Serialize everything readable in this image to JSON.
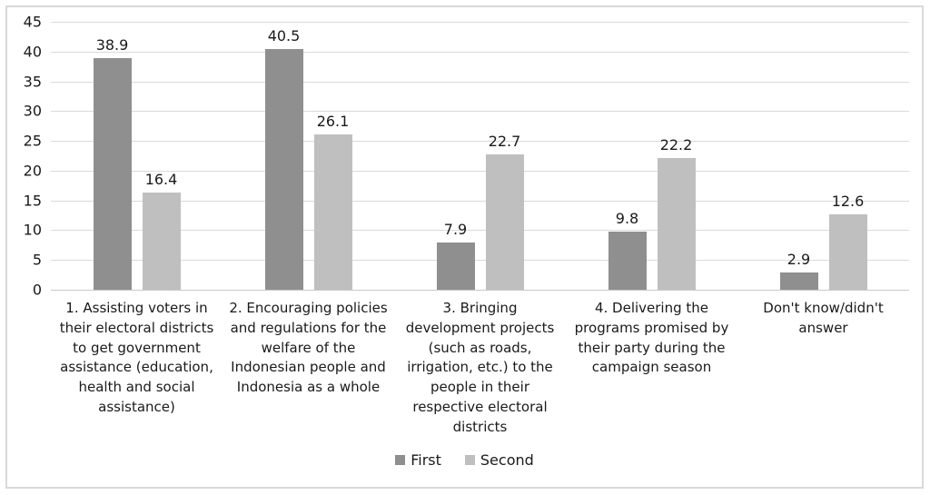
{
  "figure": {
    "background": "#ffffff",
    "border_color": "#d9d9d9",
    "text_color": "#1a1a1a",
    "gridline_color": "#dadada",
    "axis_line_color": "#c8c8c8"
  },
  "chart_data": {
    "type": "bar",
    "title": "",
    "xlabel": "",
    "ylabel": "",
    "categories": [
      "1. Assisting voters in their electoral districts to get government assistance (education, health and social assistance)",
      "2. Encouraging policies and regulations for the welfare of the Indonesian people and Indonesia as a whole",
      "3. Bringing development projects (such as roads, irrigation, etc.) to the people in their respective electoral districts",
      "4. Delivering the programs promised by their party during the campaign season",
      "Don't know/didn't answer"
    ],
    "series": [
      {
        "name": "First",
        "color": "#8f8f8f",
        "values": [
          38.9,
          40.5,
          7.9,
          9.8,
          2.9
        ]
      },
      {
        "name": "Second",
        "color": "#bfbfbf",
        "values": [
          16.4,
          26.1,
          22.7,
          22.2,
          12.6
        ]
      }
    ],
    "ylim": [
      0,
      45
    ],
    "yticks": [
      45,
      40,
      35,
      30,
      25,
      20,
      15,
      10,
      5,
      0
    ],
    "grid": true,
    "data_labels": true,
    "legend_position": "bottom"
  }
}
